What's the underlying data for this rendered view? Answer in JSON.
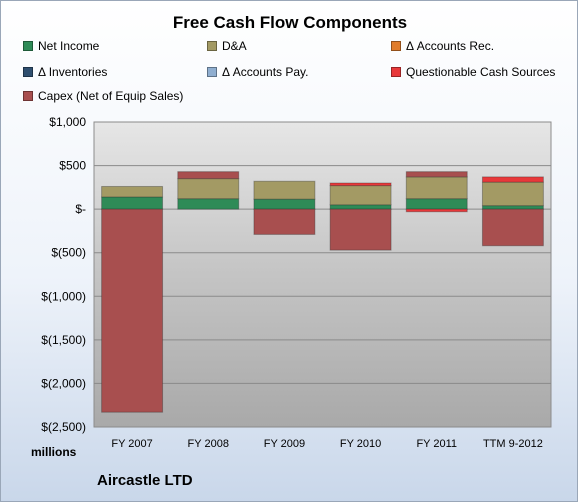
{
  "chart_data": {
    "type": "bar",
    "title": "Free Cash Flow Components",
    "units_label": "millions",
    "footer": "Aircastle LTD",
    "categories": [
      "FY 2007",
      "FY 2008",
      "FY 2009",
      "FY 2010",
      "FY 2011",
      "TTM 9-2012"
    ],
    "y_ticks": [
      "$1,000",
      "$500",
      "$-",
      "$(500)",
      "$(1,000)",
      "$(1,500)",
      "$(2,000)",
      "$(2,500)"
    ],
    "ylim": [
      -2500,
      1000
    ],
    "series": [
      {
        "name": "Net Income",
        "color": "#2e8b57",
        "values": [
          140,
          120,
          115,
          50,
          120,
          40
        ]
      },
      {
        "name": "D&A",
        "color": "#a39a64",
        "values": [
          120,
          230,
          205,
          220,
          250,
          270
        ]
      },
      {
        "name": "Δ Accounts Rec.",
        "color": "#e07b2a",
        "values": [
          0,
          0,
          0,
          0,
          0,
          0
        ]
      },
      {
        "name": "Δ Inventories",
        "color": "#2f4f6f",
        "values": [
          0,
          0,
          0,
          0,
          0,
          0
        ]
      },
      {
        "name": "Δ Accounts Pay.",
        "color": "#8faed0",
        "values": [
          0,
          0,
          0,
          0,
          0,
          0
        ]
      },
      {
        "name": "Questionable Cash Sources",
        "color": "#e8383a",
        "values": [
          0,
          0,
          0,
          30,
          -30,
          60
        ]
      },
      {
        "name": "Capex (Net of Equip Sales)",
        "color": "#a84f4f",
        "values": [
          -2330,
          80,
          -290,
          -470,
          60,
          -420
        ]
      }
    ]
  }
}
